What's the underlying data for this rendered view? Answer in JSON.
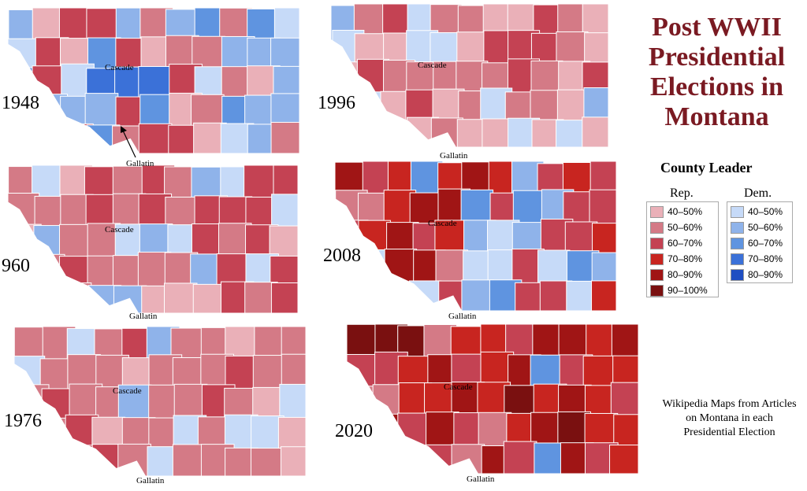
{
  "title_lines": [
    "Post WWII",
    "Presidential",
    "Elections in",
    "Montana"
  ],
  "legend": {
    "title": "County Leader",
    "rep_heading": "Rep.",
    "dem_heading": "Dem.",
    "rep": [
      {
        "label": "40–50%",
        "color": "#eab0b8"
      },
      {
        "label": "50–60%",
        "color": "#d47a86"
      },
      {
        "label": "60–70%",
        "color": "#c44253"
      },
      {
        "label": "70–80%",
        "color": "#c82520"
      },
      {
        "label": "80–90%",
        "color": "#a01515"
      },
      {
        "label": "90–100%",
        "color": "#7a1010"
      }
    ],
    "dem": [
      {
        "label": "40–50%",
        "color": "#c6daf8"
      },
      {
        "label": "50–60%",
        "color": "#8fb3ea"
      },
      {
        "label": "60–70%",
        "color": "#5f94e0"
      },
      {
        "label": "70–80%",
        "color": "#3b71d8"
      },
      {
        "label": "80–90%",
        "color": "#1f4ec2"
      }
    ]
  },
  "maps": [
    {
      "year": "1948",
      "county_label": "Cascade",
      "gallatin_label": "Gallatin"
    },
    {
      "year": "1996",
      "county_label": "Cascade",
      "gallatin_label": "Gallatin"
    },
    {
      "year": "960",
      "county_label": "Cascade",
      "gallatin_label": "Gallatin"
    },
    {
      "year": "2008",
      "county_label": "Cascade",
      "gallatin_label": "Gallatin"
    },
    {
      "year": "1976",
      "county_label": "Cascade",
      "gallatin_label": "Gallatin"
    },
    {
      "year": "2020",
      "county_label": "Cascade",
      "gallatin_label": "Gallatin"
    }
  ],
  "credit": "Wikipedia Maps from Articles on Montana in each Presidential Election"
}
